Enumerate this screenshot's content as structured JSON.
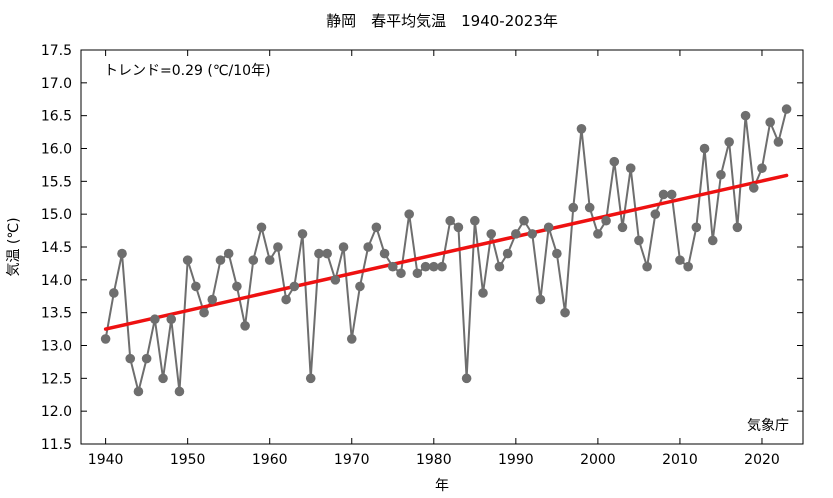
{
  "chart_data": {
    "type": "line",
    "title": "静岡　春平均気温　1940-2023年",
    "xlabel": "年",
    "ylabel": "気温 (℃)",
    "xlim": [
      1937,
      2025
    ],
    "ylim": [
      11.5,
      17.5
    ],
    "x_ticks": [
      1940,
      1950,
      1960,
      1970,
      1980,
      1990,
      2000,
      2010,
      2020
    ],
    "x_tick_labels": [
      "1940",
      "1950",
      "1960",
      "1970",
      "1980",
      "1990",
      "2000",
      "2010",
      "2020"
    ],
    "y_ticks": [
      11.5,
      12.0,
      12.5,
      13.0,
      13.5,
      14.0,
      14.5,
      15.0,
      15.5,
      16.0,
      16.5,
      17.0,
      17.5
    ],
    "y_tick_labels": [
      "11.5",
      "12.0",
      "12.5",
      "13.0",
      "13.5",
      "14.0",
      "14.5",
      "15.0",
      "15.5",
      "16.0",
      "16.5",
      "17.0",
      "17.5"
    ],
    "grid": false,
    "series": [
      {
        "type": "line",
        "color": "#6e6e6e",
        "x": [
          1940,
          1941,
          1942,
          1943,
          1944,
          1945,
          1946,
          1947,
          1948,
          1949,
          1950,
          1951,
          1952,
          1953,
          1954,
          1955,
          1956,
          1957,
          1958,
          1959,
          1960,
          1961,
          1962,
          1963,
          1964,
          1965,
          1966,
          1967,
          1968,
          1969,
          1970,
          1971,
          1972,
          1973,
          1974,
          1975,
          1976,
          1977,
          1978,
          1979,
          1980,
          1981,
          1982,
          1983,
          1984,
          1985,
          1986,
          1987,
          1988,
          1989,
          1990,
          1991,
          1992,
          1993,
          1994,
          1995,
          1996,
          1997,
          1998,
          1999,
          2000,
          2001,
          2002,
          2003,
          2004,
          2005,
          2006,
          2007,
          2008,
          2009,
          2010,
          2011,
          2012,
          2013,
          2014,
          2015,
          2016,
          2017,
          2018,
          2019,
          2020,
          2021,
          2022,
          2023
        ],
        "values": [
          13.1,
          13.8,
          14.4,
          12.8,
          12.3,
          12.8,
          13.4,
          12.5,
          13.4,
          12.3,
          14.3,
          13.9,
          13.5,
          13.7,
          14.3,
          14.4,
          13.9,
          13.3,
          14.3,
          14.8,
          14.3,
          14.5,
          13.7,
          13.9,
          14.7,
          12.5,
          14.4,
          14.4,
          14.0,
          14.5,
          13.1,
          13.9,
          14.5,
          14.8,
          14.4,
          14.2,
          14.1,
          15.0,
          14.1,
          14.2,
          14.2,
          14.2,
          14.9,
          14.8,
          12.5,
          14.9,
          13.8,
          14.7,
          14.2,
          14.4,
          14.7,
          14.9,
          14.7,
          13.7,
          14.8,
          14.4,
          13.5,
          15.1,
          16.3,
          15.1,
          14.7,
          14.9,
          15.8,
          14.8,
          15.7,
          14.6,
          14.2,
          15.0,
          15.3,
          15.3,
          14.3,
          14.2,
          14.8,
          16.0,
          14.6,
          15.6,
          16.1,
          14.8,
          16.5,
          15.4,
          15.7,
          16.4,
          16.1,
          16.6
        ]
      },
      {
        "type": "trend",
        "color": "#ee1111",
        "x": [
          1940,
          2023
        ],
        "values": [
          13.25,
          15.59
        ]
      }
    ],
    "annotations": {
      "trend_text": "トレンド=0.29 (℃/10年)",
      "source": "気象庁"
    }
  }
}
